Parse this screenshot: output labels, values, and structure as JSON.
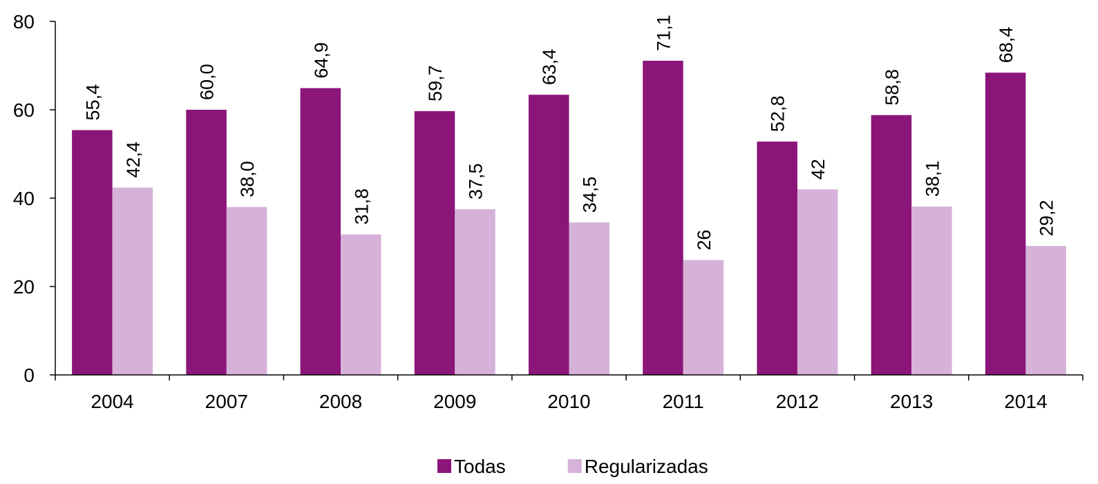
{
  "chart_data": {
    "type": "bar",
    "categories": [
      "2004",
      "2007",
      "2008",
      "2009",
      "2010",
      "2011",
      "2012",
      "2013",
      "2014"
    ],
    "series": [
      {
        "name": "Todas",
        "color": "#8b1579",
        "values": [
          55.4,
          60.0,
          64.9,
          59.7,
          63.4,
          71.1,
          52.8,
          58.8,
          68.4
        ],
        "value_labels": [
          "55,4",
          "60,0",
          "64,9",
          "59,7",
          "63,4",
          "71,1",
          "52,8",
          "58,8",
          "68,4"
        ]
      },
      {
        "name": "Regularizadas",
        "color": "#d6b2d9",
        "values": [
          42.4,
          38.0,
          31.8,
          37.5,
          34.5,
          26,
          42,
          38.1,
          29.2
        ],
        "value_labels": [
          "42,4",
          "38,0",
          "31,8",
          "37,5",
          "34,5",
          "26",
          "42",
          "38,1",
          "29,2"
        ]
      }
    ],
    "ylim": [
      0,
      80
    ],
    "yticks": [
      0,
      20,
      40,
      60,
      80
    ],
    "legend": "bottom"
  }
}
